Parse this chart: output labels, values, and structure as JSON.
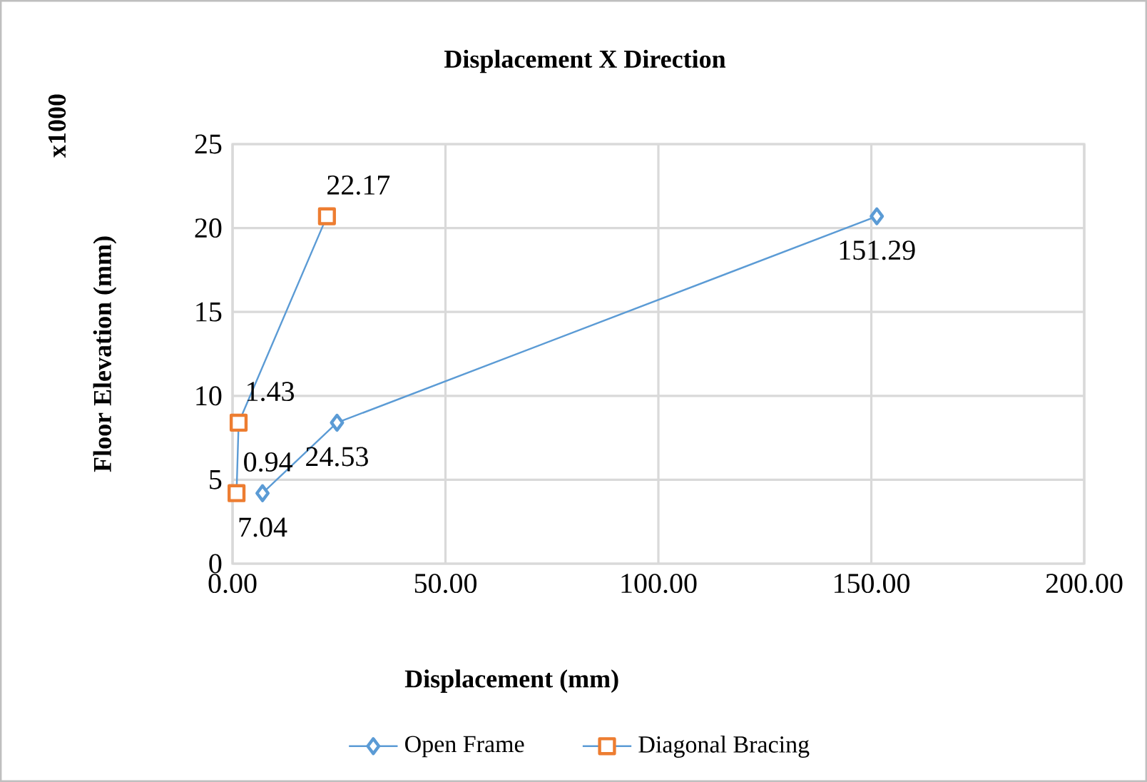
{
  "chart_data": {
    "type": "line",
    "title": "Displacement X Direction",
    "xlabel": "Displacement (mm)",
    "ylabel": "Floor Elevation (mm)",
    "annotations": [
      "x1000",
      {
        "text": "7.04",
        "x": 7.04,
        "y": 4.2
      },
      {
        "text": "24.53",
        "x": 24.53,
        "y": 8.4
      },
      {
        "text": "151.29",
        "x": 151.29,
        "y": 20.7
      },
      {
        "text": "0.94",
        "x": 0.94,
        "y": 4.2
      },
      {
        "text": "1.43",
        "x": 1.43,
        "y": 8.4
      },
      {
        "text": "22.17",
        "x": 22.17,
        "y": 20.7
      }
    ],
    "xlim": [
      0,
      200
    ],
    "xticks": [
      {
        "value": 0,
        "label": "0.00"
      },
      {
        "value": 50,
        "label": "50.00"
      },
      {
        "value": 100,
        "label": "100.00"
      },
      {
        "value": 150,
        "label": "150.00"
      },
      {
        "value": 200,
        "label": "200.00"
      }
    ],
    "ylim": [
      0,
      25
    ],
    "yticks": [
      0,
      5,
      10,
      15,
      20,
      25
    ],
    "grid": true,
    "legend": "bottom",
    "line_style": "solid",
    "series": [
      {
        "name": "Open Frame",
        "color": "#5b9bd5",
        "marker": "diamond",
        "x": [
          7.04,
          24.53,
          151.29
        ],
        "values": [
          4.2,
          8.4,
          20.7
        ]
      },
      {
        "name": "Diagonal Bracing",
        "color": "#5b9bd5",
        "colors": [
          "#ed7d31",
          "#ed7d31",
          "#ed7d31"
        ],
        "marker": "square",
        "x": [
          0.94,
          1.43,
          22.17
        ],
        "values": [
          4.2,
          8.4,
          20.7
        ]
      }
    ]
  }
}
